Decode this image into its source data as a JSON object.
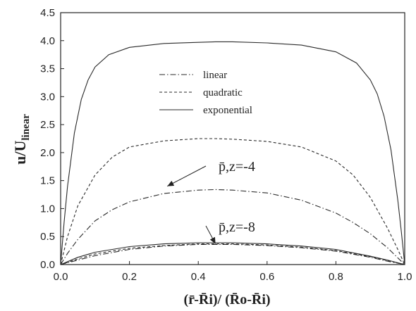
{
  "chart_data": {
    "type": "line",
    "title": "",
    "xlabel": "(r̄-R̄i)/ (R̄o-R̄i)",
    "ylabel": "u/Ulinear",
    "xlim": [
      0,
      1
    ],
    "ylim": [
      0,
      4.5
    ],
    "x_ticks": [
      "0.0",
      "0.2",
      "0.4",
      "0.6",
      "0.8",
      "1.0"
    ],
    "y_ticks": [
      "0.0",
      "0.5",
      "1.0",
      "1.5",
      "2.0",
      "2.5",
      "3.0",
      "3.5",
      "4.0",
      "4.5"
    ],
    "grid": false,
    "legend": {
      "placement": "upper-center",
      "entries": [
        {
          "label": "linear",
          "style": "dash-dot"
        },
        {
          "label": "quadratic",
          "style": "dashed"
        },
        {
          "label": "exponential",
          "style": "solid"
        }
      ]
    },
    "annotations": [
      {
        "text": "p̄,z=-4",
        "points_to": {
          "x": 0.31,
          "y": 1.4
        }
      },
      {
        "text": "p̄,z=-8",
        "points_to": {
          "x": 0.45,
          "y": 0.37
        }
      }
    ],
    "series": [
      {
        "group": "p̄,z=-4",
        "style": "solid",
        "x": [
          0,
          0.01,
          0.02,
          0.04,
          0.06,
          0.08,
          0.1,
          0.14,
          0.2,
          0.3,
          0.4,
          0.45,
          0.5,
          0.6,
          0.7,
          0.8,
          0.86,
          0.9,
          0.92,
          0.94,
          0.96,
          0.98,
          0.99,
          1.0
        ],
        "y": [
          0,
          0.75,
          1.4,
          2.35,
          2.95,
          3.3,
          3.53,
          3.75,
          3.88,
          3.95,
          3.97,
          3.98,
          3.98,
          3.96,
          3.92,
          3.8,
          3.6,
          3.3,
          3.05,
          2.65,
          2.05,
          1.15,
          0.6,
          0
        ]
      },
      {
        "group": "p̄,z=-4",
        "style": "dashed",
        "x": [
          0,
          0.02,
          0.05,
          0.1,
          0.15,
          0.2,
          0.3,
          0.4,
          0.45,
          0.5,
          0.6,
          0.7,
          0.8,
          0.85,
          0.9,
          0.95,
          0.98,
          1.0
        ],
        "y": [
          0,
          0.5,
          1.05,
          1.6,
          1.92,
          2.1,
          2.21,
          2.25,
          2.25,
          2.24,
          2.2,
          2.1,
          1.85,
          1.6,
          1.2,
          0.65,
          0.27,
          0
        ]
      },
      {
        "group": "p̄,z=-4",
        "style": "dash-dot",
        "x": [
          0,
          0.02,
          0.05,
          0.1,
          0.15,
          0.2,
          0.3,
          0.4,
          0.45,
          0.5,
          0.6,
          0.7,
          0.8,
          0.85,
          0.9,
          0.95,
          0.98,
          1.0
        ],
        "y": [
          0,
          0.2,
          0.45,
          0.78,
          0.98,
          1.12,
          1.27,
          1.33,
          1.34,
          1.33,
          1.28,
          1.15,
          0.92,
          0.75,
          0.55,
          0.3,
          0.12,
          0
        ]
      },
      {
        "group": "p̄,z=-8",
        "style": "solid",
        "x": [
          0,
          0.05,
          0.1,
          0.2,
          0.3,
          0.4,
          0.5,
          0.6,
          0.7,
          0.8,
          0.9,
          0.95,
          1.0
        ],
        "y": [
          0,
          0.13,
          0.22,
          0.32,
          0.37,
          0.39,
          0.39,
          0.37,
          0.33,
          0.27,
          0.15,
          0.08,
          0
        ]
      },
      {
        "group": "p̄,z=-8",
        "style": "dashed",
        "x": [
          0,
          0.05,
          0.1,
          0.2,
          0.3,
          0.4,
          0.5,
          0.6,
          0.7,
          0.8,
          0.9,
          0.95,
          1.0
        ],
        "y": [
          0,
          0.1,
          0.19,
          0.29,
          0.34,
          0.37,
          0.37,
          0.35,
          0.31,
          0.25,
          0.14,
          0.07,
          0
        ]
      },
      {
        "group": "p̄,z=-8",
        "style": "dash-dot",
        "x": [
          0,
          0.05,
          0.1,
          0.2,
          0.3,
          0.4,
          0.5,
          0.6,
          0.7,
          0.8,
          0.9,
          0.95,
          1.0
        ],
        "y": [
          0,
          0.08,
          0.16,
          0.27,
          0.33,
          0.36,
          0.36,
          0.34,
          0.3,
          0.24,
          0.13,
          0.06,
          0
        ]
      }
    ]
  }
}
